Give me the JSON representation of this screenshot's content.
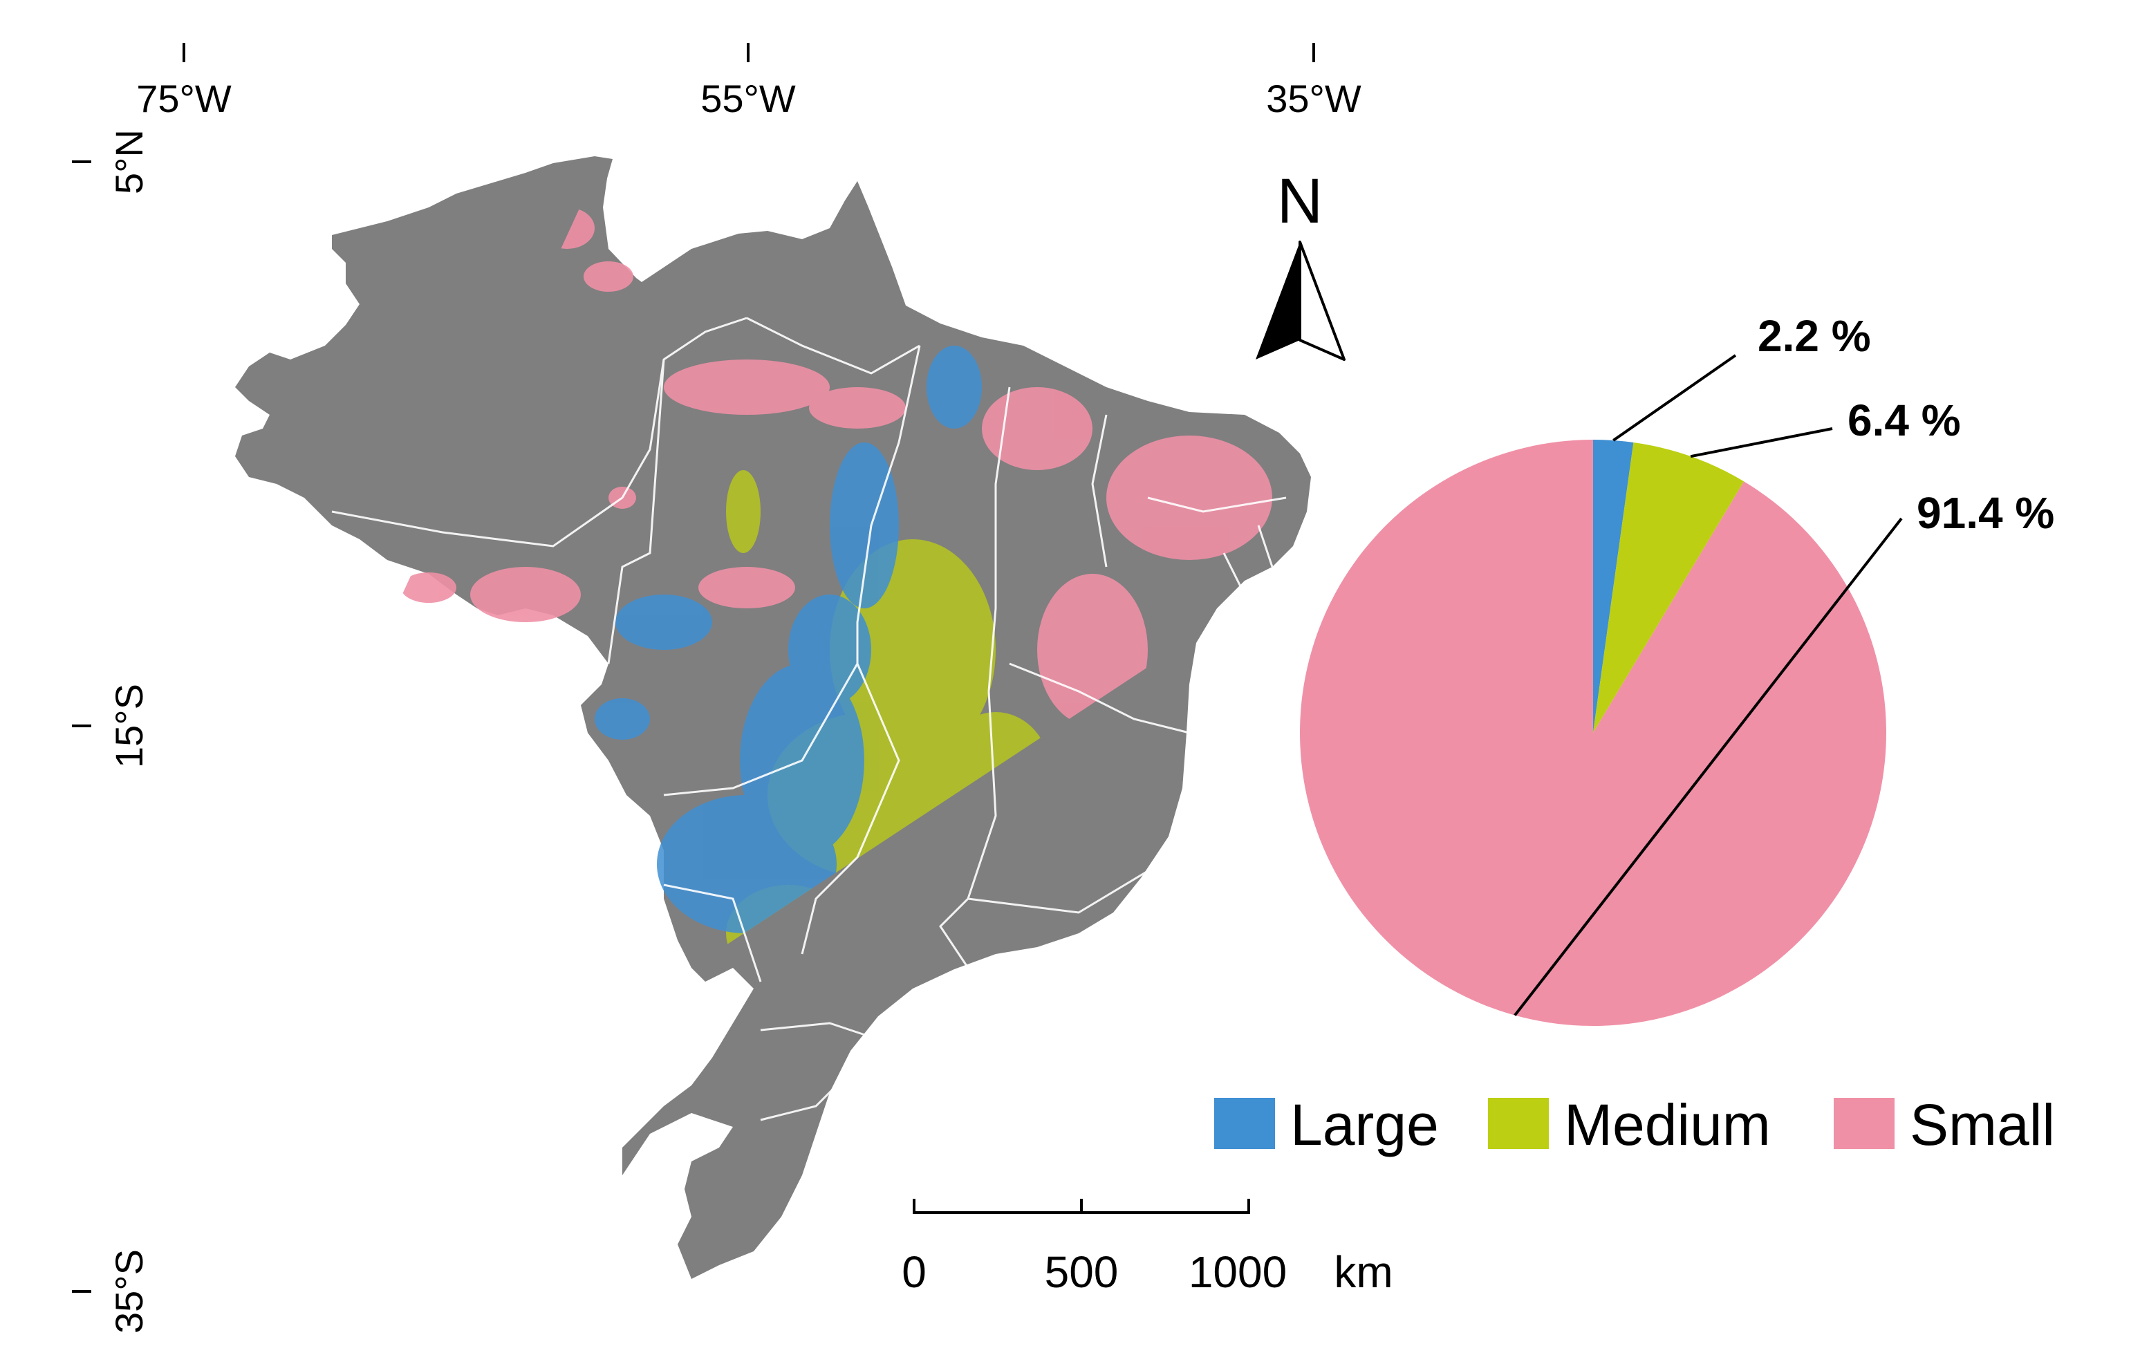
{
  "map": {
    "coordinates": {
      "longitudes": [
        "75°W",
        "55°W",
        "35°W"
      ],
      "latitudes": [
        "5°N",
        "15°S",
        "35°S"
      ]
    },
    "north_arrow": {
      "label": "N"
    },
    "scale_bar": {
      "ticks": [
        "0",
        "500",
        "1000"
      ],
      "unit": "km",
      "values_km": [
        0,
        500,
        1000
      ]
    },
    "colors": {
      "land": "#7f7f7f",
      "boundary": "#ffffff",
      "large": "#3f8fd3",
      "medium": "#bccf12",
      "small": "#f090a6"
    }
  },
  "chart_data": {
    "type": "pie",
    "labels": [
      "Large",
      "Medium",
      "Small"
    ],
    "values": [
      2.2,
      6.4,
      91.4
    ],
    "value_labels": [
      "2.2 %",
      "6.4 %",
      "91.4 %"
    ],
    "colors": [
      "#3f8fd3",
      "#bccf12",
      "#f090a6"
    ],
    "legend": {
      "placement": "bottom-right",
      "entries": [
        "Large",
        "Medium",
        "Small"
      ]
    }
  }
}
